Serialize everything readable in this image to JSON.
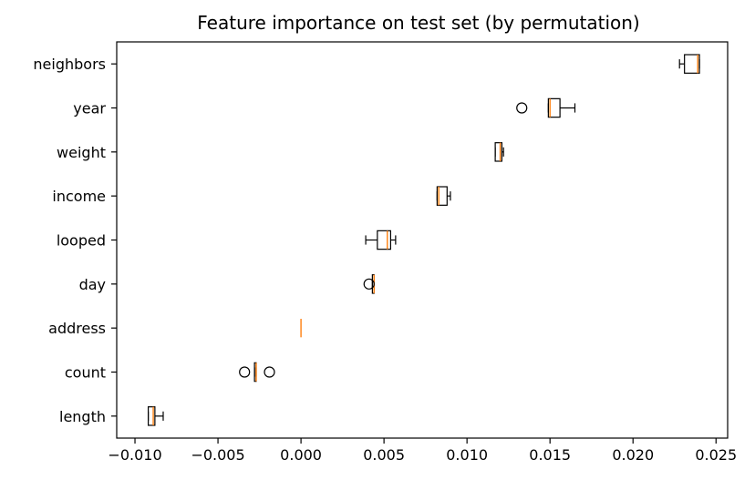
{
  "chart_data": {
    "type": "box",
    "orientation": "horizontal",
    "title": "Feature importance on test set (by permutation)",
    "xlabel": "",
    "ylabel": "",
    "xlim": [
      -0.0111,
      0.0257
    ],
    "xticks": [
      -0.01,
      -0.005,
      0.0,
      0.005,
      0.01,
      0.015,
      0.02,
      0.025
    ],
    "xtick_labels": [
      "−0.010",
      "−0.005",
      "0.000",
      "0.005",
      "0.010",
      "0.015",
      "0.020",
      "0.025"
    ],
    "grid": false,
    "categories": [
      "neighbors",
      "year",
      "weight",
      "income",
      "looped",
      "day",
      "address",
      "count",
      "length"
    ],
    "boxes": [
      {
        "label": "neighbors",
        "whislo": 0.0228,
        "q1": 0.0231,
        "median": 0.0239,
        "q3": 0.024,
        "whishi": 0.024,
        "fliers": []
      },
      {
        "label": "year",
        "whislo": 0.0149,
        "q1": 0.0149,
        "median": 0.015,
        "q3": 0.0156,
        "whishi": 0.0165,
        "fliers": [
          0.0133
        ]
      },
      {
        "label": "weight",
        "whislo": 0.0117,
        "q1": 0.0117,
        "median": 0.012,
        "q3": 0.0121,
        "whishi": 0.0122,
        "fliers": []
      },
      {
        "label": "income",
        "whislo": 0.0082,
        "q1": 0.0082,
        "median": 0.0083,
        "q3": 0.0088,
        "whishi": 0.009,
        "fliers": []
      },
      {
        "label": "looped",
        "whislo": 0.0039,
        "q1": 0.0046,
        "median": 0.0052,
        "q3": 0.0054,
        "whishi": 0.0057,
        "fliers": []
      },
      {
        "label": "day",
        "whislo": 0.0043,
        "q1": 0.0043,
        "median": 0.0044,
        "q3": 0.0044,
        "whishi": 0.0044,
        "fliers": [
          0.0041
        ]
      },
      {
        "label": "address",
        "whislo": 0.0,
        "q1": 0.0,
        "median": 0.0,
        "q3": 0.0,
        "whishi": 0.0,
        "fliers": []
      },
      {
        "label": "count",
        "whislo": -0.0028,
        "q1": -0.0028,
        "median": -0.0027,
        "q3": -0.0027,
        "whishi": -0.0027,
        "fliers": [
          -0.0034,
          -0.0019
        ]
      },
      {
        "label": "length",
        "whislo": -0.0092,
        "q1": -0.0092,
        "median": -0.0089,
        "q3": -0.0088,
        "whishi": -0.0083,
        "fliers": []
      }
    ],
    "colors": {
      "median": "#ff7f0e",
      "box": "#000000",
      "background": "#ffffff"
    }
  }
}
